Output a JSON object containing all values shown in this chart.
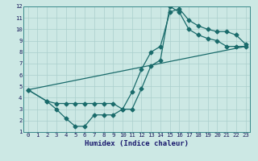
{
  "xlabel": "Humidex (Indice chaleur)",
  "bg_color": "#cce8e4",
  "line_color": "#1a6b6b",
  "grid_color": "#aacfcc",
  "xlim": [
    -0.5,
    23.5
  ],
  "ylim": [
    1,
    12
  ],
  "xticks": [
    0,
    1,
    2,
    3,
    4,
    5,
    6,
    7,
    8,
    9,
    10,
    11,
    12,
    13,
    14,
    15,
    16,
    17,
    18,
    19,
    20,
    21,
    22,
    23
  ],
  "yticks": [
    1,
    2,
    3,
    4,
    5,
    6,
    7,
    8,
    9,
    10,
    11,
    12
  ],
  "curve1_x": [
    0,
    2,
    3,
    4,
    5,
    6,
    7,
    8,
    9,
    10,
    11,
    12,
    13,
    14,
    15,
    16,
    17,
    18,
    19,
    20,
    21,
    22,
    23
  ],
  "curve1_y": [
    4.7,
    3.7,
    3.0,
    2.2,
    1.5,
    1.5,
    2.5,
    2.5,
    2.5,
    3.0,
    4.5,
    6.5,
    8.0,
    8.5,
    11.5,
    11.8,
    10.8,
    10.3,
    10.0,
    9.8,
    9.8,
    9.5,
    8.7
  ],
  "curve2_x": [
    0,
    2,
    3,
    4,
    5,
    6,
    7,
    8,
    9,
    10,
    11,
    12,
    13,
    14,
    15,
    16,
    17,
    18,
    19,
    20,
    21,
    22,
    23
  ],
  "curve2_y": [
    4.7,
    3.7,
    3.5,
    3.5,
    3.5,
    3.5,
    3.5,
    3.5,
    3.5,
    3.0,
    3.0,
    4.8,
    6.8,
    7.3,
    12.0,
    11.5,
    10.0,
    9.5,
    9.2,
    9.0,
    8.5,
    8.5,
    8.5
  ],
  "curve3_x": [
    0,
    23
  ],
  "curve3_y": [
    4.7,
    8.5
  ]
}
